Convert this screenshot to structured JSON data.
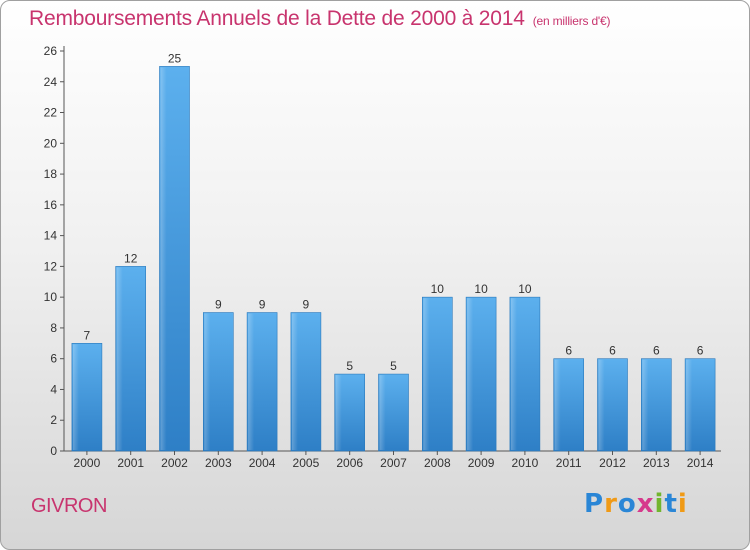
{
  "chart_data": {
    "type": "bar",
    "title": "Remboursements Annuels de la Dette de 2000 à 2014",
    "subtitle": "(en milliers d'€)",
    "categories": [
      "2000",
      "2001",
      "2002",
      "2003",
      "2004",
      "2005",
      "2006",
      "2007",
      "2008",
      "2009",
      "2010",
      "2011",
      "2012",
      "2013",
      "2014"
    ],
    "values": [
      7,
      12,
      25,
      9,
      9,
      9,
      5,
      5,
      10,
      10,
      10,
      6,
      6,
      6,
      6
    ],
    "ylim": [
      0,
      26
    ],
    "yticks": [
      0,
      2,
      4,
      6,
      8,
      10,
      12,
      14,
      16,
      18,
      20,
      22,
      24,
      26
    ],
    "xlabel": "",
    "ylabel": "",
    "grid": false,
    "bar_color": "#4fa3e3"
  },
  "footer": {
    "commune": "GIVRON",
    "logo_letters": [
      "P",
      "r",
      "o",
      "x",
      "i",
      "t",
      "i"
    ],
    "logo_colors": [
      "#2a86d6",
      "#f09a16",
      "#2a86d6",
      "#d63a8c",
      "#72b52e",
      "#2a86d6",
      "#f09a16"
    ]
  }
}
